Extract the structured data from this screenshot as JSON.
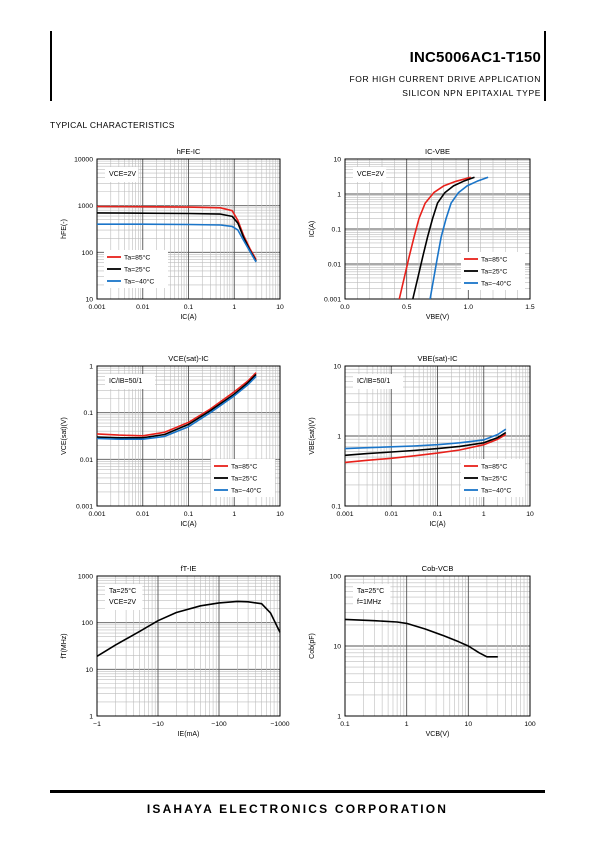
{
  "header": {
    "part_number": "INC5006AC1-T150",
    "subtitle_line1": "FOR HIGH CURRENT DRIVE APPLICATION",
    "subtitle_line2": "SILICON NPN EPITAXIAL TYPE",
    "section_title": "TYPICAL CHARACTERISTICS"
  },
  "footer": {
    "company": "ISAHAYA ELECTRONICS CORPORATION"
  },
  "colors": {
    "red": "#e8211b",
    "black": "#000000",
    "blue": "#1a75c9"
  },
  "chart_data": [
    {
      "id": "hfe-ic",
      "type": "line",
      "title": "hFE-IC",
      "xlabel": "IC(A)",
      "ylabel": "hFE(-)",
      "xscale": "log",
      "yscale": "log",
      "xlim": [
        0.001,
        10
      ],
      "ylim": [
        10,
        10000
      ],
      "xticks": [
        "0.001",
        "0.01",
        "0.1",
        "1",
        "10"
      ],
      "yticks": [
        "10",
        "100",
        "1000",
        "10000"
      ],
      "note": [
        "VCE=2V"
      ],
      "series": [
        {
          "name": "Ta=85°C",
          "color": "red",
          "x": [
            0.001,
            0.01,
            0.1,
            0.5,
            0.9,
            1.2,
            1.6,
            2.2,
            3
          ],
          "y": [
            960,
            950,
            930,
            900,
            780,
            480,
            230,
            120,
            70
          ]
        },
        {
          "name": "Ta=25°C",
          "color": "black",
          "x": [
            0.001,
            0.01,
            0.1,
            0.5,
            0.9,
            1.2,
            1.6,
            2.2,
            3
          ],
          "y": [
            700,
            690,
            680,
            660,
            590,
            420,
            210,
            110,
            65
          ]
        },
        {
          "name": "Ta=−40°C",
          "color": "blue",
          "x": [
            0.001,
            0.01,
            0.1,
            0.5,
            0.9,
            1.2,
            1.6,
            2.2,
            3
          ],
          "y": [
            400,
            400,
            395,
            385,
            360,
            300,
            180,
            105,
            62
          ]
        }
      ]
    },
    {
      "id": "ic-vbe",
      "type": "line",
      "title": "IC-VBE",
      "xlabel": "VBE(V)",
      "ylabel": "IC(A)",
      "xscale": "linear",
      "yscale": "log",
      "xlim": [
        0,
        1.5
      ],
      "ylim": [
        0.001,
        10
      ],
      "xticks": [
        "0.0",
        "0.5",
        "1.0",
        "1.5"
      ],
      "yticks": [
        "0.001",
        "0.01",
        "0.1",
        "1",
        "10"
      ],
      "note": [
        "VCE=2V"
      ],
      "series": [
        {
          "name": "Ta=85°C",
          "color": "red",
          "x": [
            0.44,
            0.48,
            0.52,
            0.56,
            0.6,
            0.65,
            0.72,
            0.8,
            0.9,
            1.02
          ],
          "y": [
            0.001,
            0.004,
            0.016,
            0.06,
            0.2,
            0.55,
            1.1,
            1.7,
            2.3,
            3
          ]
        },
        {
          "name": "Ta=25°C",
          "color": "black",
          "x": [
            0.55,
            0.59,
            0.63,
            0.67,
            0.71,
            0.75,
            0.81,
            0.88,
            0.96,
            1.05
          ],
          "y": [
            0.001,
            0.004,
            0.016,
            0.06,
            0.2,
            0.55,
            1.1,
            1.7,
            2.3,
            3
          ]
        },
        {
          "name": "Ta=−40°C",
          "color": "blue",
          "x": [
            0.69,
            0.72,
            0.75,
            0.78,
            0.82,
            0.86,
            0.92,
            0.99,
            1.07,
            1.16
          ],
          "y": [
            0.001,
            0.004,
            0.016,
            0.06,
            0.2,
            0.55,
            1.1,
            1.7,
            2.3,
            3
          ]
        }
      ]
    },
    {
      "id": "vcesat-ic",
      "type": "line",
      "title": "VCE(sat)-IC",
      "xlabel": "IC(A)",
      "ylabel": "VCE(sat)(V)",
      "xscale": "log",
      "yscale": "log",
      "xlim": [
        0.001,
        10
      ],
      "ylim": [
        0.001,
        1
      ],
      "xticks": [
        "0.001",
        "0.01",
        "0.1",
        "1",
        "10"
      ],
      "yticks": [
        "0.001",
        "0.01",
        "0.1",
        "1"
      ],
      "note": [
        "IC/IB=50/1"
      ],
      "series": [
        {
          "name": "Ta=85°C",
          "color": "red",
          "x": [
            0.001,
            0.003,
            0.01,
            0.03,
            0.1,
            0.3,
            1,
            2,
            3
          ],
          "y": [
            0.035,
            0.033,
            0.032,
            0.038,
            0.062,
            0.12,
            0.28,
            0.48,
            0.72
          ]
        },
        {
          "name": "Ta=25°C",
          "color": "black",
          "x": [
            0.001,
            0.003,
            0.01,
            0.03,
            0.1,
            0.3,
            1,
            2,
            3
          ],
          "y": [
            0.03,
            0.029,
            0.029,
            0.034,
            0.056,
            0.11,
            0.25,
            0.44,
            0.66
          ]
        },
        {
          "name": "Ta=−40°C",
          "color": "blue",
          "x": [
            0.001,
            0.003,
            0.01,
            0.03,
            0.1,
            0.3,
            1,
            2,
            3
          ],
          "y": [
            0.028,
            0.027,
            0.027,
            0.031,
            0.05,
            0.1,
            0.23,
            0.4,
            0.6
          ]
        }
      ]
    },
    {
      "id": "vbesat-ic",
      "type": "line",
      "title": "VBE(sat)-IC",
      "xlabel": "IC(A)",
      "ylabel": "VBE(sat)(V)",
      "xscale": "log",
      "yscale": "log",
      "xlim": [
        0.001,
        10
      ],
      "ylim": [
        0.1,
        10
      ],
      "xticks": [
        "0.001",
        "0.01",
        "0.1",
        "1",
        "10"
      ],
      "yticks": [
        "0.1",
        "1",
        "10"
      ],
      "note": [
        "IC/IB=50/1"
      ],
      "series": [
        {
          "name": "Ta=85°C",
          "color": "red",
          "x": [
            0.001,
            0.003,
            0.01,
            0.03,
            0.1,
            0.3,
            1,
            2,
            3
          ],
          "y": [
            0.42,
            0.45,
            0.48,
            0.52,
            0.57,
            0.63,
            0.75,
            0.9,
            1.05
          ]
        },
        {
          "name": "Ta=25°C",
          "color": "black",
          "x": [
            0.001,
            0.003,
            0.01,
            0.03,
            0.1,
            0.3,
            1,
            2,
            3
          ],
          "y": [
            0.53,
            0.56,
            0.59,
            0.62,
            0.66,
            0.71,
            0.8,
            0.95,
            1.12
          ]
        },
        {
          "name": "Ta=−40°C",
          "color": "blue",
          "x": [
            0.001,
            0.003,
            0.01,
            0.03,
            0.1,
            0.3,
            1,
            2,
            3
          ],
          "y": [
            0.66,
            0.68,
            0.7,
            0.72,
            0.75,
            0.8,
            0.88,
            1.05,
            1.25
          ]
        }
      ]
    },
    {
      "id": "ft-ie",
      "type": "line",
      "title": "fT-IE",
      "xlabel": "IE(mA)",
      "ylabel": "fT(MHz)",
      "xscale": "log",
      "yscale": "log",
      "xlim": [
        1,
        1000
      ],
      "ylim": [
        1,
        1000
      ],
      "xticks": [
        "−1",
        "−10",
        "−100",
        "−1000"
      ],
      "yticks": [
        "1",
        "10",
        "100",
        "1000"
      ],
      "note": [
        "Ta=25°C",
        "VCE=2V"
      ],
      "series": [
        {
          "name": "",
          "color": "black",
          "x": [
            1,
            2,
            5,
            10,
            20,
            50,
            100,
            200,
            300,
            500,
            700,
            1000
          ],
          "y": [
            19,
            33,
            65,
            110,
            165,
            230,
            265,
            285,
            280,
            255,
            160,
            62
          ]
        }
      ]
    },
    {
      "id": "cob-vcb",
      "type": "line",
      "title": "Cob-VCB",
      "xlabel": "VCB(V)",
      "ylabel": "Cob(pF)",
      "xscale": "log",
      "yscale": "log",
      "xlim": [
        0.1,
        100
      ],
      "ylim": [
        1,
        100
      ],
      "xticks": [
        "0.1",
        "1",
        "10",
        "100"
      ],
      "yticks": [
        "1",
        "10",
        "100"
      ],
      "note": [
        "Ta=25°C",
        "f=1MHz"
      ],
      "series": [
        {
          "name": "",
          "color": "black",
          "x": [
            0.1,
            0.3,
            0.7,
            1,
            2,
            4,
            7,
            10,
            15,
            20,
            30
          ],
          "y": [
            24,
            23,
            22,
            21,
            17.5,
            14,
            11.5,
            10,
            8,
            7,
            7
          ]
        }
      ]
    }
  ]
}
